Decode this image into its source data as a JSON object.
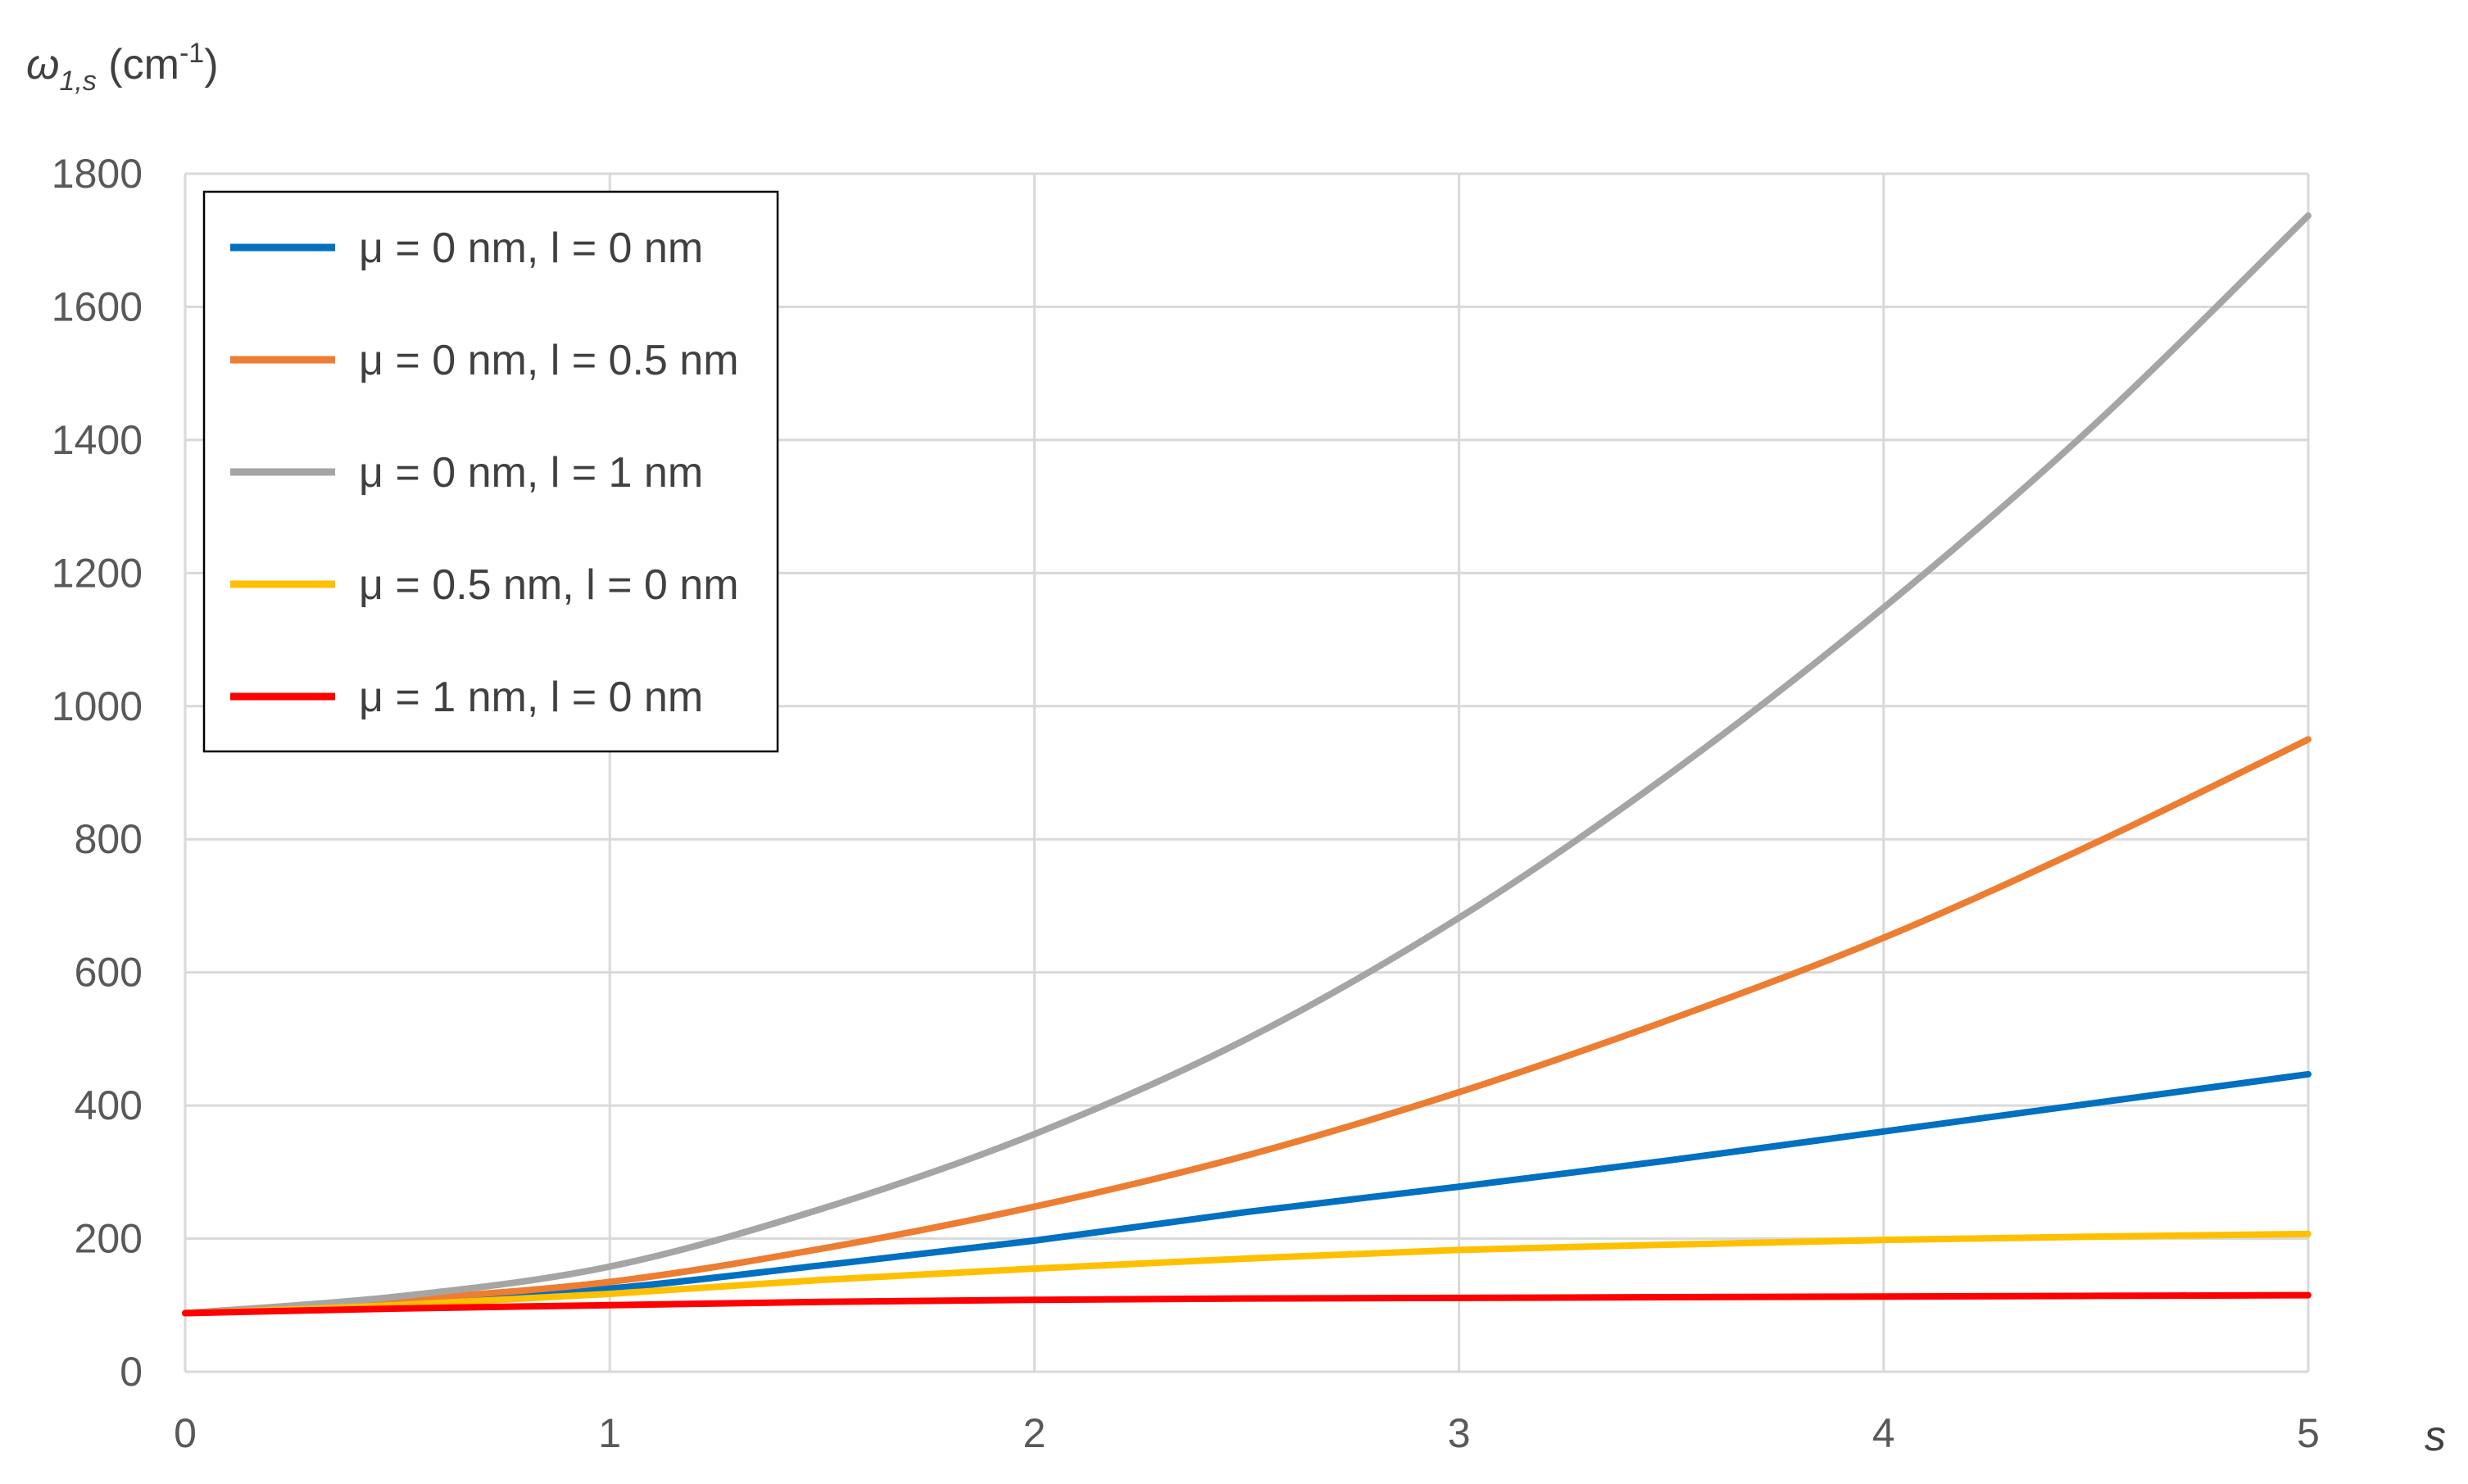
{
  "chart_data": {
    "type": "line",
    "ylabel": {
      "symbol": "ω",
      "subscript": "1,s",
      "unit_prefix": " (cm",
      "unit_exponent": "-1",
      "unit_suffix": ")"
    },
    "xlabel": "s",
    "xlim": [
      0,
      5
    ],
    "ylim": [
      0,
      1800
    ],
    "xticks": [
      "0",
      "1",
      "2",
      "3",
      "4",
      "5"
    ],
    "yticks": [
      "0",
      "200",
      "400",
      "600",
      "800",
      "1000",
      "1200",
      "1400",
      "1600",
      "1800"
    ],
    "grid": true,
    "legend_position": "top-left",
    "x": [
      0,
      0.5,
      1,
      1.5,
      2,
      2.5,
      3,
      3.5,
      4,
      4.5,
      5
    ],
    "series": [
      {
        "name": "μ = 0 nm, l = 0 nm",
        "color": "#0070C0",
        "values": [
          88,
          105,
          125,
          160,
          197,
          240,
          278,
          318,
          361,
          404,
          447
        ]
      },
      {
        "name": "μ = 0 nm, l = 0.5 nm",
        "color": "#ED7D31",
        "values": [
          88,
          108,
          135,
          185,
          248,
          325,
          420,
          530,
          652,
          795,
          950
        ]
      },
      {
        "name": "μ = 0 nm, l = 1 nm",
        "color": "#A5A5A5",
        "values": [
          88,
          113,
          158,
          245,
          357,
          500,
          682,
          900,
          1148,
          1425,
          1737
        ]
      },
      {
        "name": "μ = 0.5 nm, l = 0 nm",
        "color": "#FFC000",
        "values": [
          88,
          100,
          117,
          138,
          155,
          170,
          183,
          191,
          198,
          203,
          207
        ]
      },
      {
        "name": "μ = 1 nm, l = 0 nm",
        "color": "#FF0000",
        "values": [
          88,
          95,
          100,
          105,
          108,
          110,
          111,
          112,
          113,
          114,
          115
        ]
      }
    ]
  }
}
